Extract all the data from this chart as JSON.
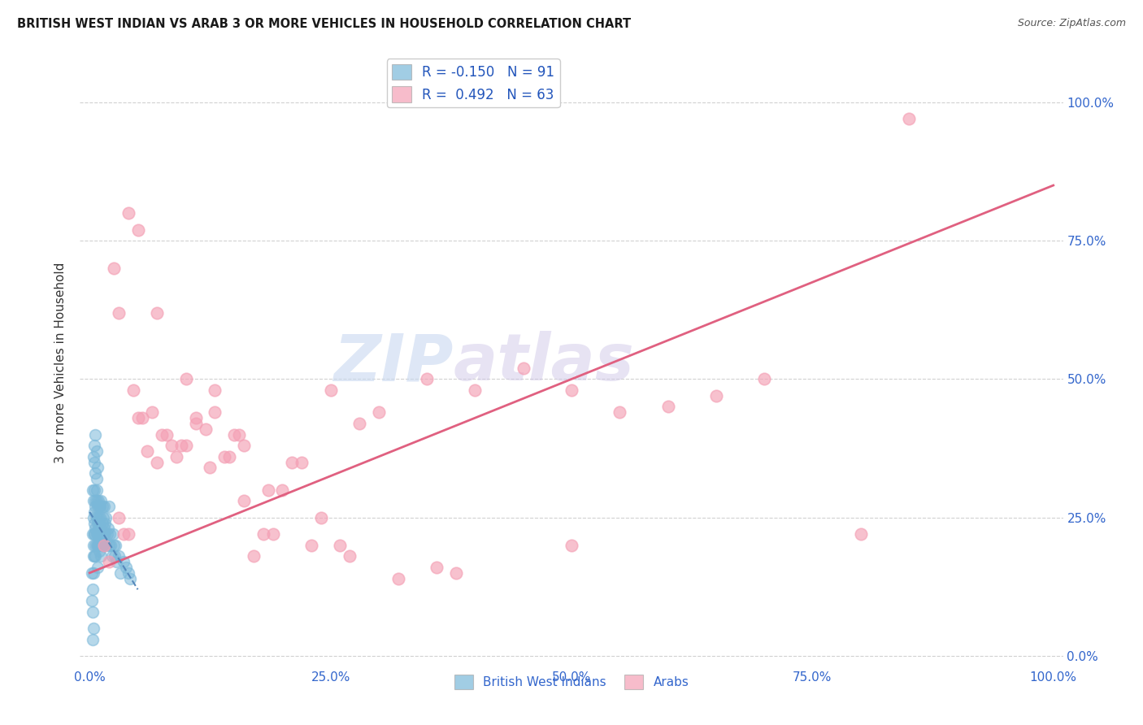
{
  "title": "BRITISH WEST INDIAN VS ARAB 3 OR MORE VEHICLES IN HOUSEHOLD CORRELATION CHART",
  "source": "Source: ZipAtlas.com",
  "ylabel": "3 or more Vehicles in Household",
  "ytick_labels": [
    "0.0%",
    "25.0%",
    "50.0%",
    "75.0%",
    "100.0%"
  ],
  "ytick_values": [
    0,
    25,
    50,
    75,
    100
  ],
  "xtick_labels": [
    "0.0%",
    "25.0%",
    "50.0%",
    "75.0%",
    "100.0%"
  ],
  "xtick_values": [
    0,
    25,
    50,
    75,
    100
  ],
  "xlim": [
    -1,
    101
  ],
  "ylim": [
    -2,
    108
  ],
  "bwi_color": "#7ab8d9",
  "arab_color": "#f4a0b5",
  "bwi_line_color": "#5588bb",
  "arab_line_color": "#e06080",
  "bwi_R": -0.15,
  "bwi_N": 91,
  "arab_R": 0.492,
  "arab_N": 63,
  "watermark_zip": "ZIP",
  "watermark_atlas": "atlas",
  "background_color": "#ffffff",
  "bwi_scatter_x": [
    0.2,
    0.3,
    0.3,
    0.3,
    0.4,
    0.4,
    0.4,
    0.4,
    0.5,
    0.5,
    0.5,
    0.5,
    0.5,
    0.6,
    0.6,
    0.6,
    0.6,
    0.7,
    0.7,
    0.7,
    0.7,
    0.7,
    0.8,
    0.8,
    0.8,
    0.8,
    0.9,
    0.9,
    0.9,
    0.9,
    1.0,
    1.0,
    1.0,
    1.0,
    1.1,
    1.1,
    1.1,
    1.2,
    1.2,
    1.2,
    1.3,
    1.3,
    1.3,
    1.4,
    1.4,
    1.5,
    1.5,
    1.5,
    1.6,
    1.6,
    1.7,
    1.7,
    1.8,
    1.9,
    2.0,
    2.0,
    2.1,
    2.2,
    2.3,
    2.4,
    2.5,
    2.6,
    2.7,
    2.8,
    3.0,
    3.2,
    3.5,
    3.8,
    4.0,
    4.2,
    0.2,
    0.3,
    0.4,
    0.5,
    0.6,
    0.7,
    0.8,
    0.9,
    1.0,
    1.1,
    1.2,
    1.3,
    0.5,
    0.6,
    0.7,
    0.8,
    0.4,
    0.5,
    0.6,
    0.3,
    0.4
  ],
  "bwi_scatter_y": [
    15,
    12,
    22,
    30,
    18,
    25,
    20,
    28,
    22,
    26,
    30,
    24,
    18,
    27,
    23,
    20,
    28,
    25,
    22,
    28,
    30,
    32,
    24,
    20,
    27,
    22,
    23,
    28,
    25,
    20,
    22,
    27,
    24,
    20,
    25,
    22,
    27,
    23,
    20,
    28,
    24,
    20,
    27,
    22,
    25,
    23,
    27,
    20,
    24,
    22,
    20,
    25,
    22,
    23,
    20,
    27,
    22,
    20,
    18,
    22,
    20,
    18,
    20,
    17,
    18,
    15,
    17,
    16,
    15,
    14,
    10,
    8,
    15,
    22,
    18,
    20,
    16,
    22,
    19,
    21,
    18,
    20,
    35,
    33,
    37,
    34,
    36,
    38,
    40,
    3,
    5
  ],
  "arab_scatter_x": [
    1.5,
    3.0,
    4.0,
    5.0,
    6.0,
    7.0,
    8.0,
    9.0,
    10.0,
    11.0,
    12.0,
    13.0,
    14.0,
    15.0,
    16.0,
    17.0,
    18.0,
    20.0,
    22.0,
    25.0,
    28.0,
    30.0,
    35.0,
    40.0,
    45.0,
    50.0,
    55.0,
    60.0,
    65.0,
    70.0,
    2.0,
    3.5,
    5.5,
    7.5,
    9.5,
    12.5,
    16.0,
    19.0,
    23.0,
    27.0,
    4.5,
    6.5,
    8.5,
    11.0,
    14.5,
    18.5,
    24.0,
    32.0,
    38.0,
    80.0,
    3.0,
    5.0,
    7.0,
    10.0,
    13.0,
    15.5,
    21.0,
    26.0,
    36.0,
    50.0,
    2.5,
    4.0,
    85.0
  ],
  "arab_scatter_y": [
    20,
    25,
    22,
    43,
    37,
    35,
    40,
    36,
    38,
    42,
    41,
    44,
    36,
    40,
    38,
    18,
    22,
    30,
    35,
    48,
    42,
    44,
    50,
    48,
    52,
    48,
    44,
    45,
    47,
    50,
    17,
    22,
    43,
    40,
    38,
    34,
    28,
    22,
    20,
    18,
    48,
    44,
    38,
    43,
    36,
    30,
    25,
    14,
    15,
    22,
    62,
    77,
    62,
    50,
    48,
    40,
    35,
    20,
    16,
    20,
    70,
    80,
    97
  ],
  "arab_trendline_x": [
    0,
    100
  ],
  "arab_trendline_y": [
    15,
    85
  ],
  "bwi_trendline_x": [
    0,
    5
  ],
  "bwi_trendline_y": [
    26,
    12
  ]
}
